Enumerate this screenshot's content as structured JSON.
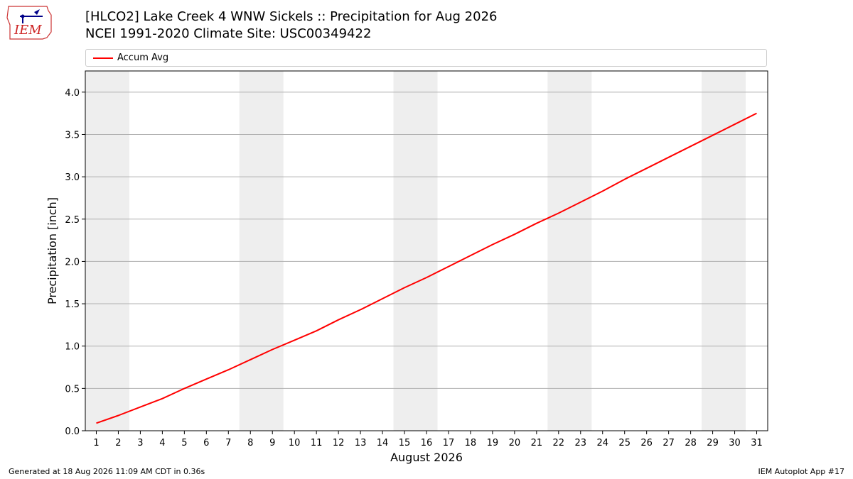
{
  "header": {
    "logo_text": "IEM",
    "title_line1": "[HLCO2] Lake Creek 4 WNW Sickels :: Precipitation for Aug 2026",
    "title_line2": "NCEI 1991-2020 Climate Site: USC00349422"
  },
  "footer": {
    "generated": "Generated at 18 Aug 2026 11:09 AM CDT in 0.36s",
    "app": "IEM Autoplot App #17"
  },
  "colors": {
    "line": "#ff0000",
    "weekend_band": "#eeeeee",
    "grid": "#b0b0b0"
  },
  "chart_data": {
    "type": "line",
    "xlabel": "August 2026",
    "ylabel": "Precipitation [inch]",
    "xlim": [
      0.5,
      31.5
    ],
    "ylim": [
      0,
      4.25
    ],
    "yticks": [
      "0.0",
      "0.5",
      "1.0",
      "1.5",
      "2.0",
      "2.5",
      "3.0",
      "3.5",
      "4.0"
    ],
    "xticks": [
      "1",
      "2",
      "3",
      "4",
      "5",
      "6",
      "7",
      "8",
      "9",
      "10",
      "11",
      "12",
      "13",
      "14",
      "15",
      "16",
      "17",
      "18",
      "19",
      "20",
      "21",
      "22",
      "23",
      "24",
      "25",
      "26",
      "27",
      "28",
      "29",
      "30",
      "31"
    ],
    "grid": "horizontal",
    "legend_position": "top",
    "weekend_bands": [
      [
        1,
        2
      ],
      [
        8,
        9
      ],
      [
        15,
        16
      ],
      [
        22,
        23
      ],
      [
        29,
        30
      ]
    ],
    "series": [
      {
        "name": "Accum Avg",
        "x": [
          1,
          2,
          3,
          4,
          5,
          6,
          7,
          8,
          9,
          10,
          11,
          12,
          13,
          14,
          15,
          16,
          17,
          18,
          19,
          20,
          21,
          22,
          23,
          24,
          25,
          26,
          27,
          28,
          29,
          30,
          31
        ],
        "values": [
          0.09,
          0.18,
          0.28,
          0.38,
          0.5,
          0.61,
          0.72,
          0.84,
          0.96,
          1.07,
          1.18,
          1.31,
          1.43,
          1.56,
          1.69,
          1.81,
          1.94,
          2.07,
          2.2,
          2.32,
          2.45,
          2.57,
          2.7,
          2.83,
          2.97,
          3.1,
          3.23,
          3.36,
          3.49,
          3.62,
          3.75
        ]
      }
    ]
  }
}
